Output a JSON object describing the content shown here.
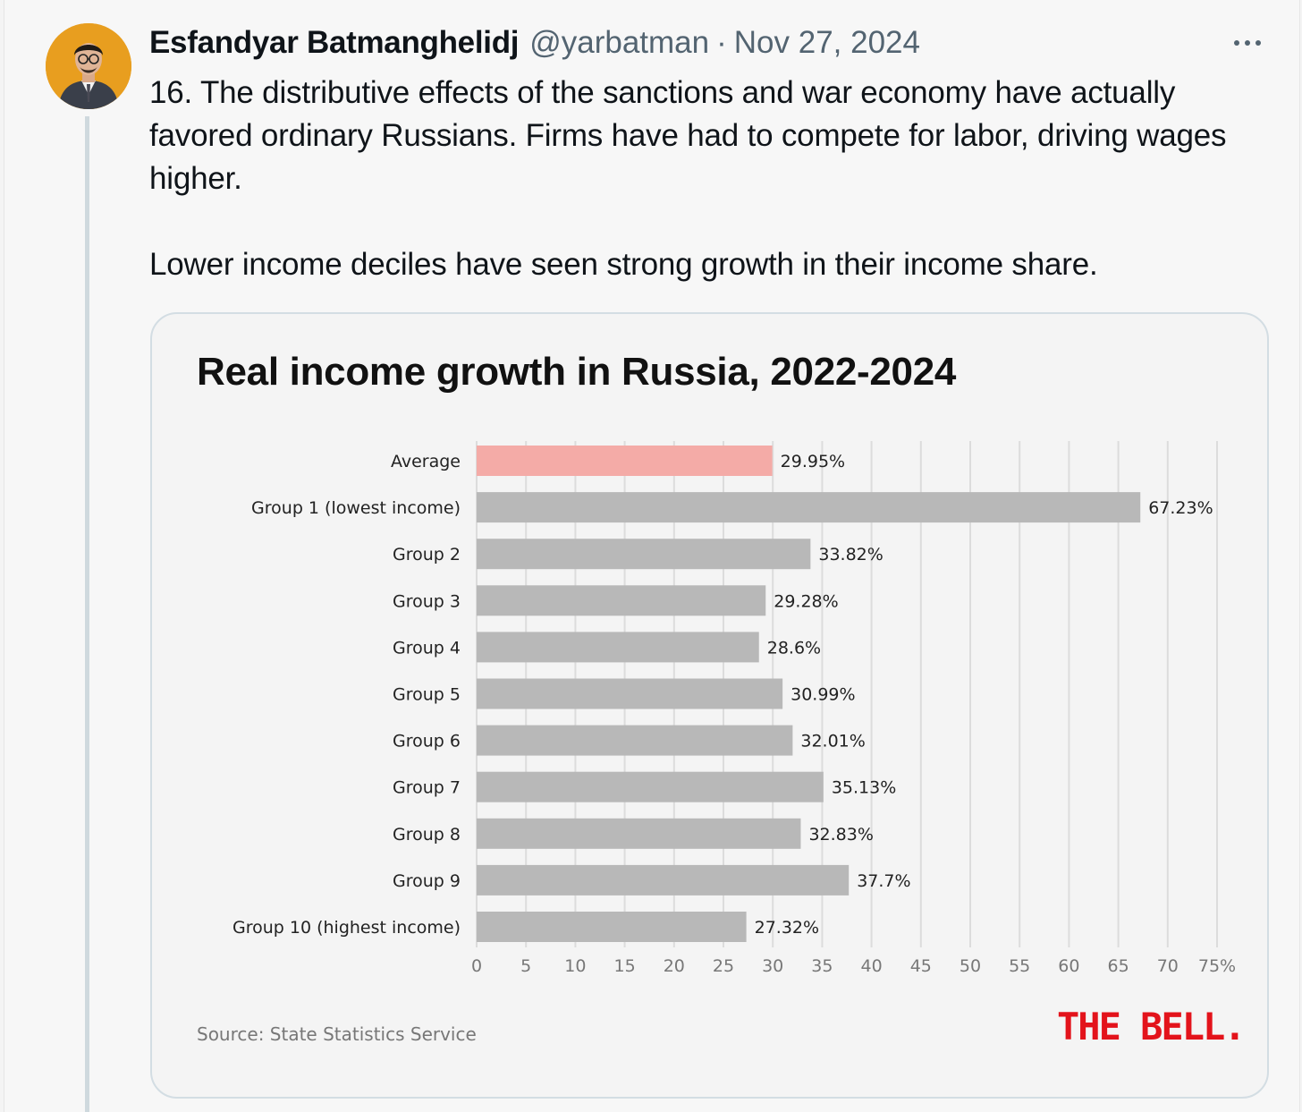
{
  "tweet": {
    "author_name": "Esfandyar Batmanghelidj",
    "author_handle": "@yarbatman",
    "separator": "·",
    "date": "Nov 27, 2024",
    "text_paragraphs": [
      "16. The distributive effects of the sanctions and war economy have actually favored ordinary Russians. Firms have had to compete for labor, driving wages higher.",
      "Lower income deciles have seen strong growth in their income share."
    ],
    "more_icon": "more-horizontal-icon",
    "avatar_bg": "#e89e1f"
  },
  "media": {
    "source": "Source: State Statistics Service",
    "brand": "THE BELL."
  },
  "chart_data": {
    "type": "bar",
    "orientation": "horizontal",
    "title": "Real income growth in Russia, 2022-2024",
    "xlabel": "",
    "ylabel": "",
    "xlim": [
      0,
      75
    ],
    "x_ticks": [
      "0",
      "5",
      "10",
      "15",
      "20",
      "25",
      "30",
      "35",
      "40",
      "45",
      "50",
      "55",
      "60",
      "65",
      "70",
      "75%"
    ],
    "grid": "vertical",
    "categories": [
      "Average",
      "Group 1 (lowest income)",
      "Group 2",
      "Group 3",
      "Group 4",
      "Group 5",
      "Group 6",
      "Group 7",
      "Group 8",
      "Group 9",
      "Group 10 (highest income)"
    ],
    "values": [
      29.95,
      67.23,
      33.82,
      29.28,
      28.6,
      30.99,
      32.01,
      35.13,
      32.83,
      37.7,
      27.32
    ],
    "value_labels": [
      "29.95%",
      "67.23%",
      "33.82%",
      "29.28%",
      "28.6%",
      "30.99%",
      "32.01%",
      "35.13%",
      "32.83%",
      "37.7%",
      "27.32%"
    ],
    "colors": {
      "highlight": "#f4aba7",
      "bar": "#b8b8b8",
      "grid": "#dcdcdc",
      "brand": "#e3131b"
    },
    "highlight_index": 0
  }
}
